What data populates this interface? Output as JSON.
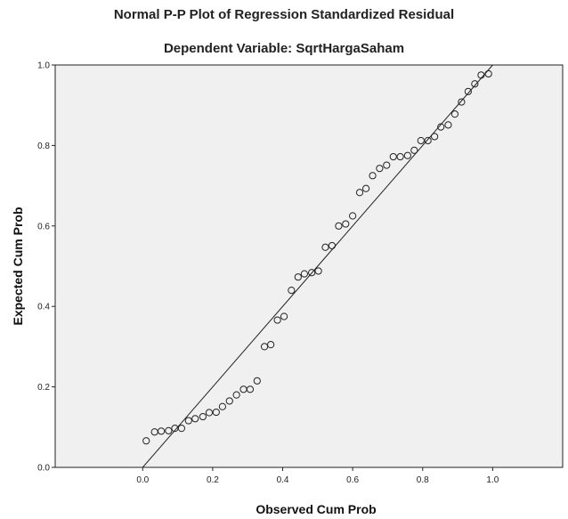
{
  "chart_data": {
    "type": "scatter",
    "title": "Normal P-P Plot of Regression Standardized Residual",
    "subtitle": "Dependent Variable: SqrtHargaSaham",
    "xlabel": "Observed Cum Prob",
    "ylabel": "Expected Cum Prob",
    "xlim": [
      -0.25,
      1.2
    ],
    "ylim": [
      0,
      1
    ],
    "x_ticks": [
      "0.0",
      "0.2",
      "0.4",
      "0.6",
      "0.8",
      "1.0"
    ],
    "y_ticks": [
      "0.0",
      "0.2",
      "0.4",
      "0.6",
      "0.8",
      "1.0"
    ],
    "x_tick_values": [
      0,
      0.2,
      0.4,
      0.6,
      0.8,
      1.0
    ],
    "y_tick_values": [
      0,
      0.2,
      0.4,
      0.6,
      0.8,
      1.0
    ],
    "reference_line": [
      [
        0,
        0
      ],
      [
        1,
        1
      ]
    ],
    "grid": false,
    "legend": "none",
    "colors": {
      "plot_background": "#f0f0f0",
      "marker": "#222222",
      "line": "#222222"
    },
    "points": [
      {
        "x": 0.01,
        "y": 0.066
      },
      {
        "x": 0.034,
        "y": 0.088
      },
      {
        "x": 0.053,
        "y": 0.09
      },
      {
        "x": 0.074,
        "y": 0.091
      },
      {
        "x": 0.092,
        "y": 0.097
      },
      {
        "x": 0.111,
        "y": 0.097
      },
      {
        "x": 0.131,
        "y": 0.116
      },
      {
        "x": 0.15,
        "y": 0.121
      },
      {
        "x": 0.172,
        "y": 0.126
      },
      {
        "x": 0.19,
        "y": 0.136
      },
      {
        "x": 0.21,
        "y": 0.137
      },
      {
        "x": 0.228,
        "y": 0.151
      },
      {
        "x": 0.248,
        "y": 0.165
      },
      {
        "x": 0.268,
        "y": 0.18
      },
      {
        "x": 0.288,
        "y": 0.194
      },
      {
        "x": 0.307,
        "y": 0.194
      },
      {
        "x": 0.327,
        "y": 0.215
      },
      {
        "x": 0.348,
        "y": 0.3
      },
      {
        "x": 0.366,
        "y": 0.305
      },
      {
        "x": 0.385,
        "y": 0.366
      },
      {
        "x": 0.404,
        "y": 0.375
      },
      {
        "x": 0.425,
        "y": 0.44
      },
      {
        "x": 0.444,
        "y": 0.473
      },
      {
        "x": 0.462,
        "y": 0.481
      },
      {
        "x": 0.483,
        "y": 0.484
      },
      {
        "x": 0.502,
        "y": 0.488
      },
      {
        "x": 0.522,
        "y": 0.547
      },
      {
        "x": 0.541,
        "y": 0.551
      },
      {
        "x": 0.56,
        "y": 0.6
      },
      {
        "x": 0.58,
        "y": 0.605
      },
      {
        "x": 0.6,
        "y": 0.625
      },
      {
        "x": 0.62,
        "y": 0.683
      },
      {
        "x": 0.638,
        "y": 0.693
      },
      {
        "x": 0.657,
        "y": 0.725
      },
      {
        "x": 0.677,
        "y": 0.743
      },
      {
        "x": 0.697,
        "y": 0.751
      },
      {
        "x": 0.716,
        "y": 0.772
      },
      {
        "x": 0.736,
        "y": 0.772
      },
      {
        "x": 0.757,
        "y": 0.775
      },
      {
        "x": 0.776,
        "y": 0.788
      },
      {
        "x": 0.795,
        "y": 0.812
      },
      {
        "x": 0.815,
        "y": 0.812
      },
      {
        "x": 0.834,
        "y": 0.822
      },
      {
        "x": 0.852,
        "y": 0.846
      },
      {
        "x": 0.873,
        "y": 0.851
      },
      {
        "x": 0.892,
        "y": 0.878
      },
      {
        "x": 0.911,
        "y": 0.908
      },
      {
        "x": 0.93,
        "y": 0.934
      },
      {
        "x": 0.949,
        "y": 0.953
      },
      {
        "x": 0.967,
        "y": 0.975
      },
      {
        "x": 0.988,
        "y": 0.978
      }
    ]
  }
}
